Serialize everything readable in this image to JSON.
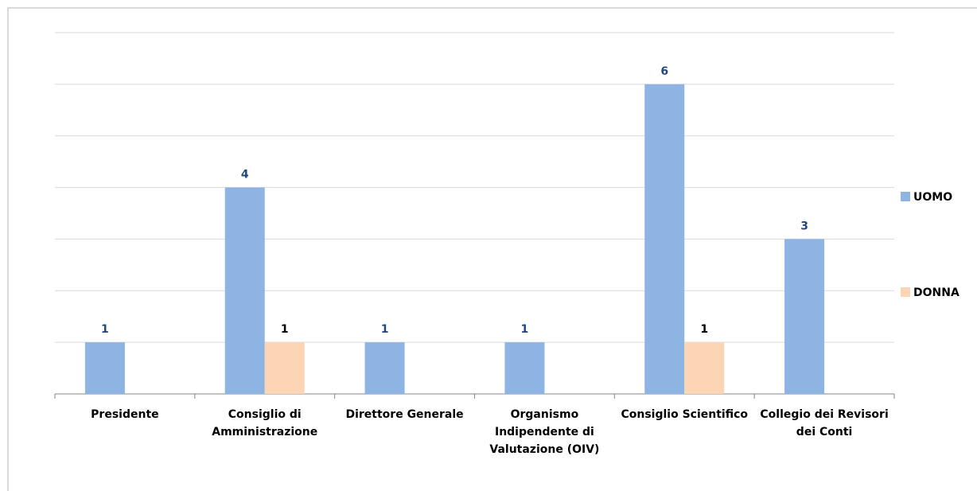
{
  "chart_data": {
    "type": "bar",
    "categories": [
      "Presidente",
      "Consiglio di Amministrazione",
      "Direttore Generale",
      "Organismo Indipendente di Valutazione (OIV)",
      "Consiglio Scientifico",
      "Collegio dei Revisori dei Conti"
    ],
    "series": [
      {
        "name": "UOMO",
        "color": "#8eb4e3",
        "label_color": "#1f497d",
        "values": [
          1,
          4,
          1,
          1,
          6,
          3
        ]
      },
      {
        "name": "DONNA",
        "color": "#fcd5b5",
        "label_color": "#000000",
        "values": [
          null,
          1,
          null,
          null,
          1,
          null
        ]
      }
    ],
    "ylim": [
      0,
      7
    ],
    "yticks": [
      0,
      1,
      2,
      3,
      4,
      5,
      6,
      7
    ],
    "grid": true,
    "legend": "right"
  }
}
